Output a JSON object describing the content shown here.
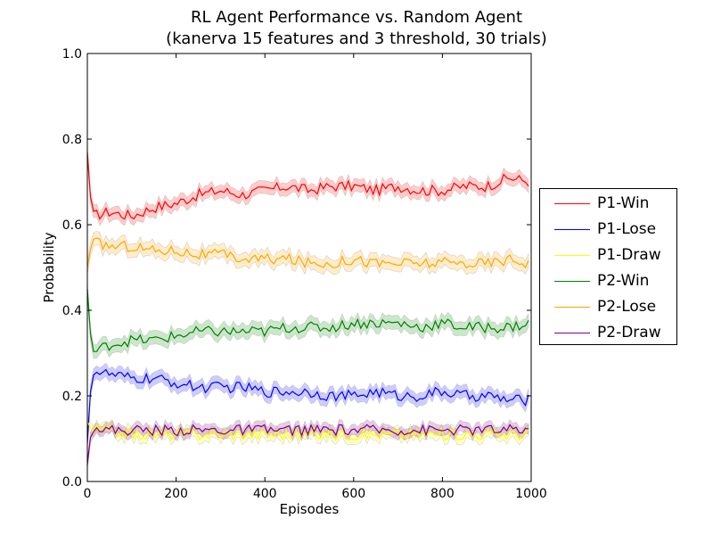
{
  "chart_data": {
    "type": "line",
    "title": "RL Agent Performance vs. Random Agent",
    "subtitle": "(kanerva 15 features and 3 threshold, 30 trials)",
    "xlabel": "Episodes",
    "ylabel": "Probability",
    "xlim": [
      0,
      1000
    ],
    "ylim": [
      0.0,
      1.0
    ],
    "xticks": [
      "0",
      "200",
      "400",
      "600",
      "800",
      "1000"
    ],
    "yticks": [
      "0.0",
      "0.2",
      "0.4",
      "0.6",
      "0.8",
      "1.0"
    ],
    "legend_position": "right-outside",
    "grid": false,
    "x": [
      0,
      10,
      50,
      100,
      150,
      200,
      250,
      300,
      350,
      400,
      450,
      500,
      550,
      600,
      650,
      700,
      750,
      800,
      850,
      900,
      950,
      1000
    ],
    "series": [
      {
        "name": "P1-Win",
        "color": "#ff0000",
        "values": [
          0.77,
          0.62,
          0.63,
          0.62,
          0.64,
          0.65,
          0.67,
          0.68,
          0.67,
          0.68,
          0.69,
          0.68,
          0.69,
          0.69,
          0.68,
          0.69,
          0.68,
          0.68,
          0.69,
          0.69,
          0.71,
          0.7
        ],
        "band": 0.015
      },
      {
        "name": "P1-Lose",
        "color": "#0000ff",
        "values": [
          0.09,
          0.26,
          0.25,
          0.24,
          0.24,
          0.23,
          0.22,
          0.22,
          0.22,
          0.21,
          0.21,
          0.21,
          0.2,
          0.2,
          0.21,
          0.2,
          0.2,
          0.21,
          0.2,
          0.2,
          0.19,
          0.19
        ],
        "band": 0.015
      },
      {
        "name": "P1-Draw",
        "color": "#ffff00",
        "values": [
          0.14,
          0.12,
          0.12,
          0.11,
          0.11,
          0.11,
          0.11,
          0.11,
          0.11,
          0.11,
          0.11,
          0.11,
          0.11,
          0.11,
          0.11,
          0.11,
          0.11,
          0.11,
          0.11,
          0.11,
          0.11,
          0.11
        ],
        "band": 0.012
      },
      {
        "name": "P2-Win",
        "color": "#008000",
        "values": [
          0.45,
          0.3,
          0.32,
          0.33,
          0.33,
          0.34,
          0.35,
          0.35,
          0.35,
          0.35,
          0.36,
          0.36,
          0.36,
          0.37,
          0.37,
          0.37,
          0.36,
          0.37,
          0.36,
          0.36,
          0.36,
          0.37
        ],
        "band": 0.016
      },
      {
        "name": "P2-Lose",
        "color": "#ffa500",
        "values": [
          0.5,
          0.56,
          0.55,
          0.55,
          0.54,
          0.54,
          0.53,
          0.53,
          0.52,
          0.52,
          0.52,
          0.51,
          0.51,
          0.52,
          0.51,
          0.51,
          0.51,
          0.51,
          0.51,
          0.51,
          0.52,
          0.51
        ],
        "band": 0.016
      },
      {
        "name": "P2-Draw",
        "color": "#800080",
        "values": [
          0.04,
          0.13,
          0.12,
          0.12,
          0.12,
          0.12,
          0.12,
          0.12,
          0.12,
          0.12,
          0.12,
          0.12,
          0.12,
          0.12,
          0.12,
          0.12,
          0.12,
          0.12,
          0.12,
          0.12,
          0.12,
          0.12
        ],
        "band": 0.012
      }
    ]
  }
}
